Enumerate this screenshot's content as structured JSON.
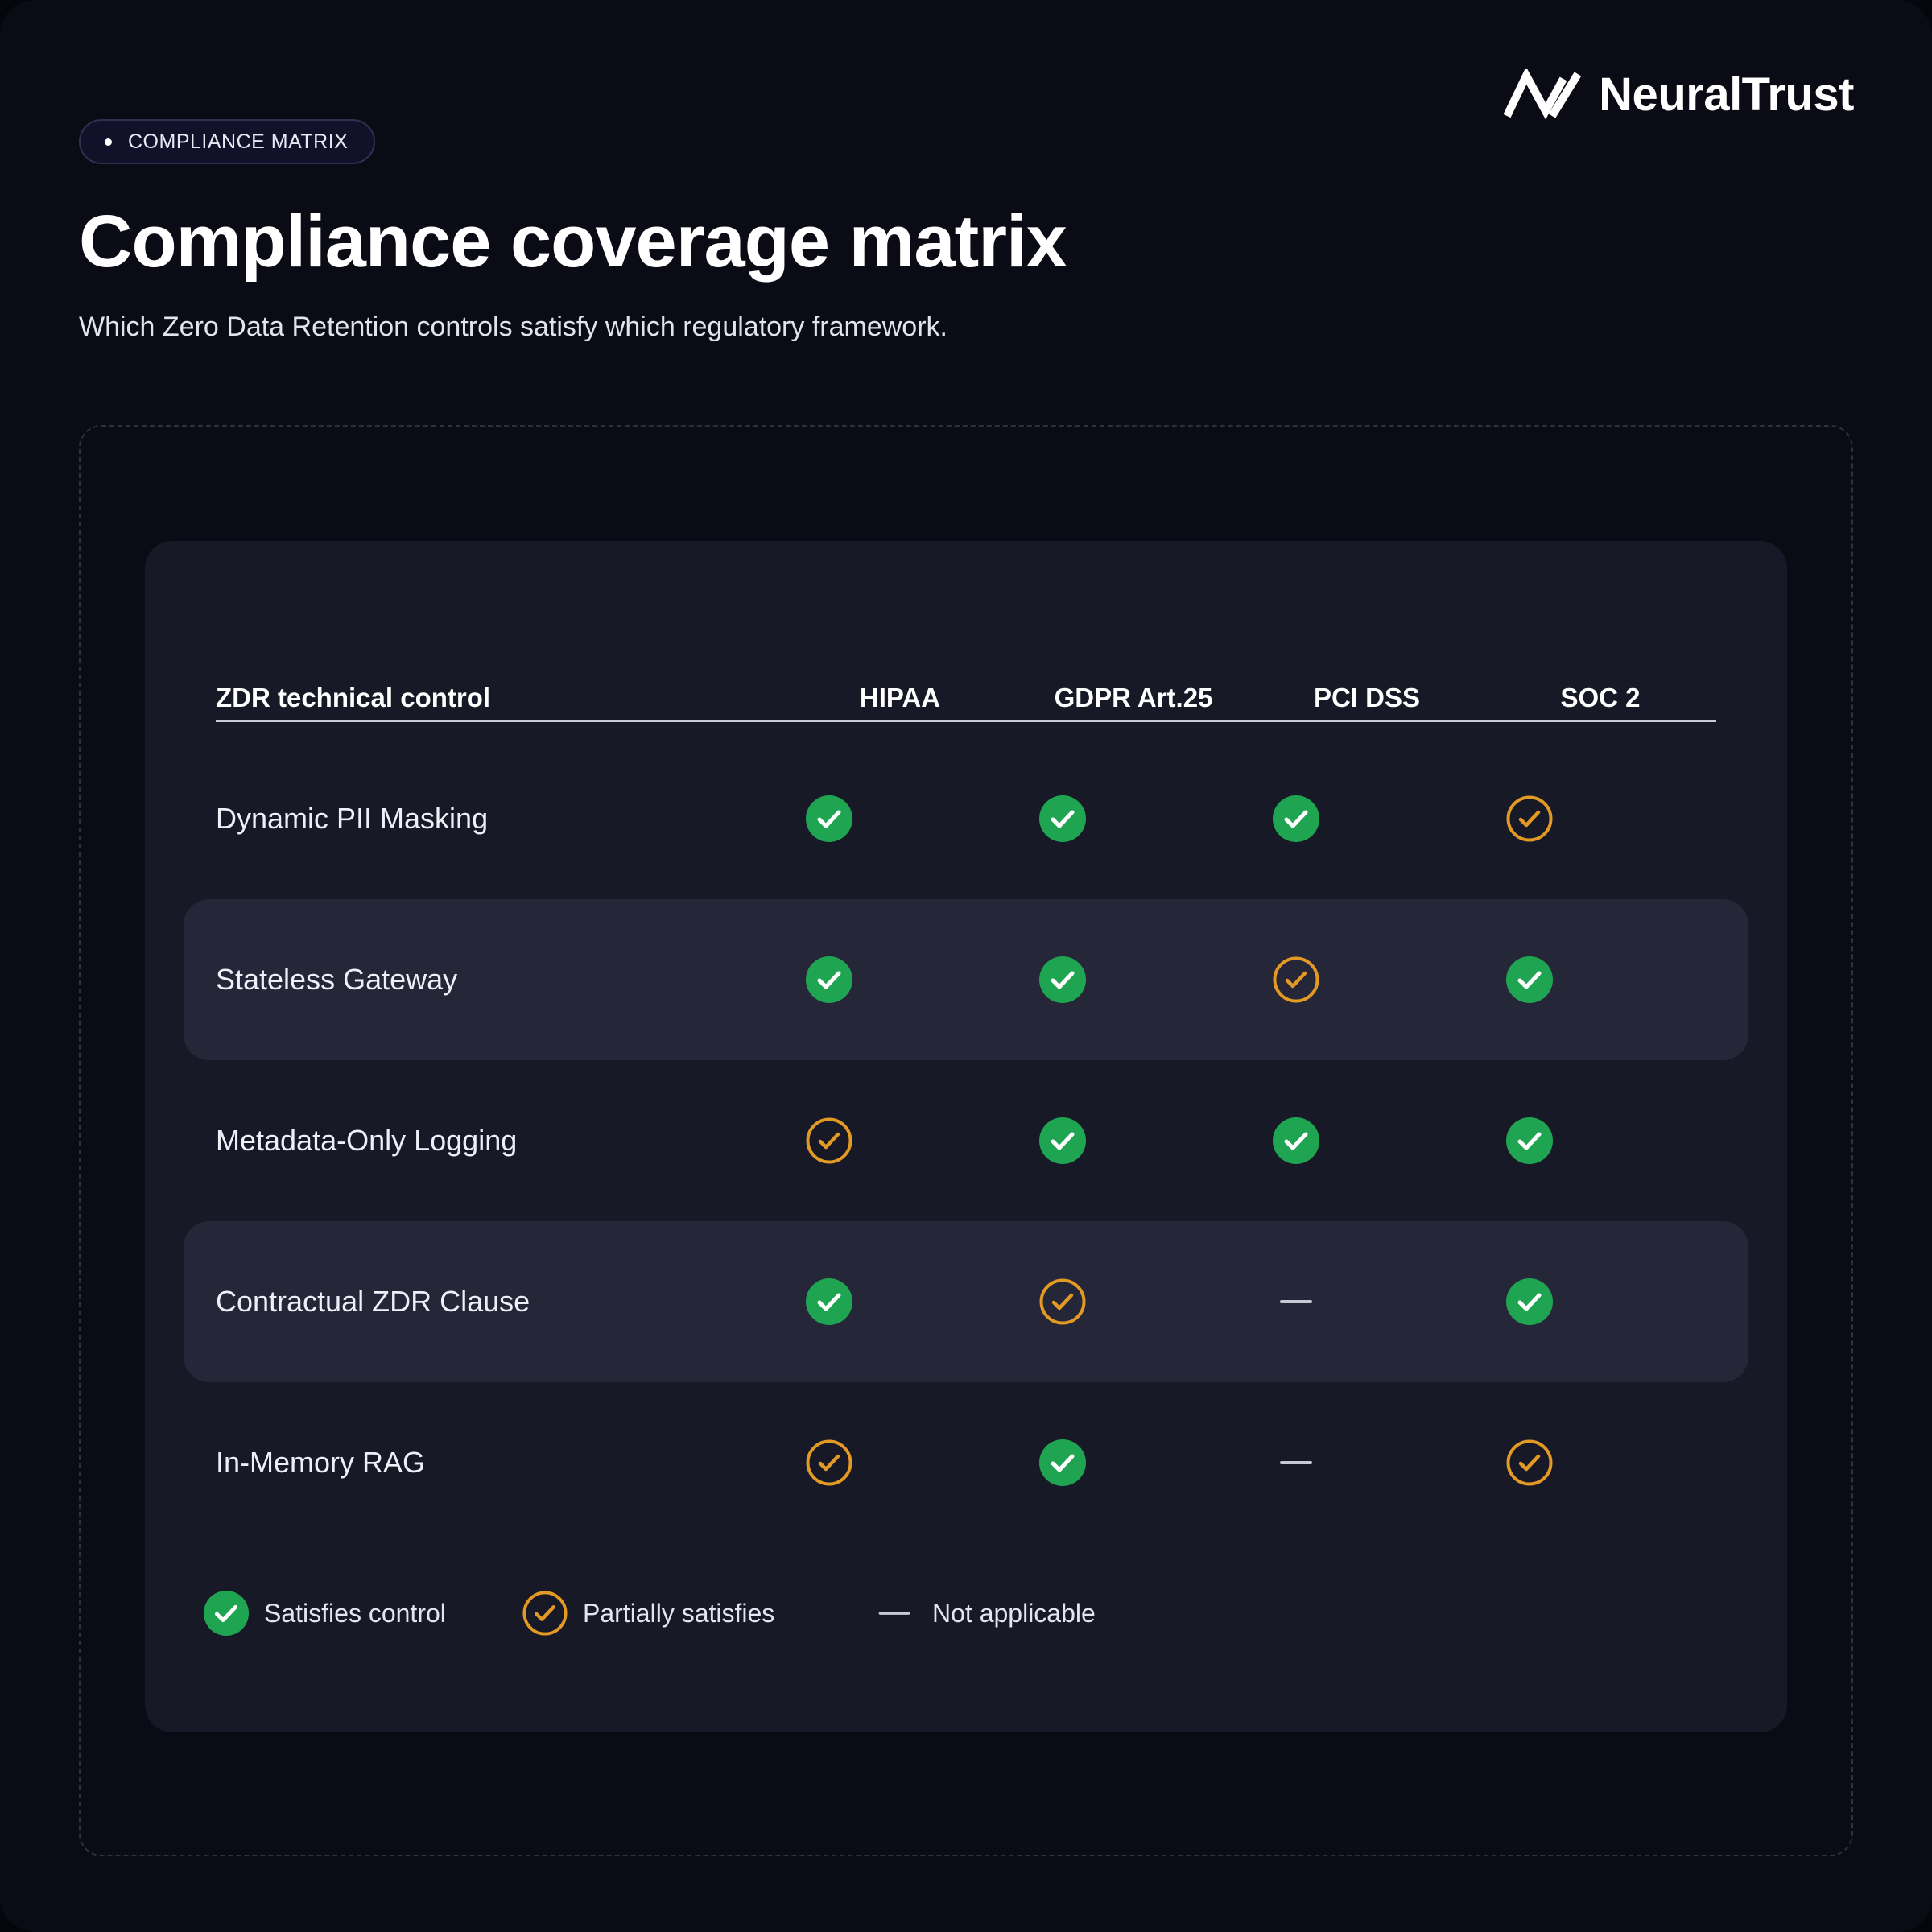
{
  "badge": {
    "label": "COMPLIANCE MATRIX"
  },
  "brand": {
    "name": "NeuralTrust",
    "logo_icon": "neuraltrust-logo-icon"
  },
  "header": {
    "title": "Compliance coverage matrix",
    "subtitle": "Which Zero Data Retention controls satisfy which regulatory framework."
  },
  "table": {
    "control_header": "ZDR technical control",
    "frameworks": [
      "HIPAA",
      "GDPR Art.25",
      "PCI DSS",
      "SOC 2"
    ],
    "rows": [
      {
        "control": "Dynamic PII Masking",
        "status": [
          "full",
          "full",
          "full",
          "partial"
        ]
      },
      {
        "control": "Stateless Gateway",
        "status": [
          "full",
          "full",
          "partial",
          "full"
        ]
      },
      {
        "control": "Metadata-Only Logging",
        "status": [
          "partial",
          "full",
          "full",
          "full"
        ]
      },
      {
        "control": "Contractual ZDR Clause",
        "status": [
          "full",
          "partial",
          "na",
          "full"
        ]
      },
      {
        "control": "In-Memory RAG",
        "status": [
          "partial",
          "full",
          "na",
          "partial"
        ]
      }
    ]
  },
  "legend": {
    "full": "Satisfies control",
    "partial": "Partially satisfies",
    "na": "Not applicable"
  },
  "colors": {
    "background": "#0a0b14",
    "card": "#181926",
    "stripe": "#252638",
    "full": "#1fa552",
    "partial": "#e39a25",
    "na": "#c8c9d3"
  }
}
